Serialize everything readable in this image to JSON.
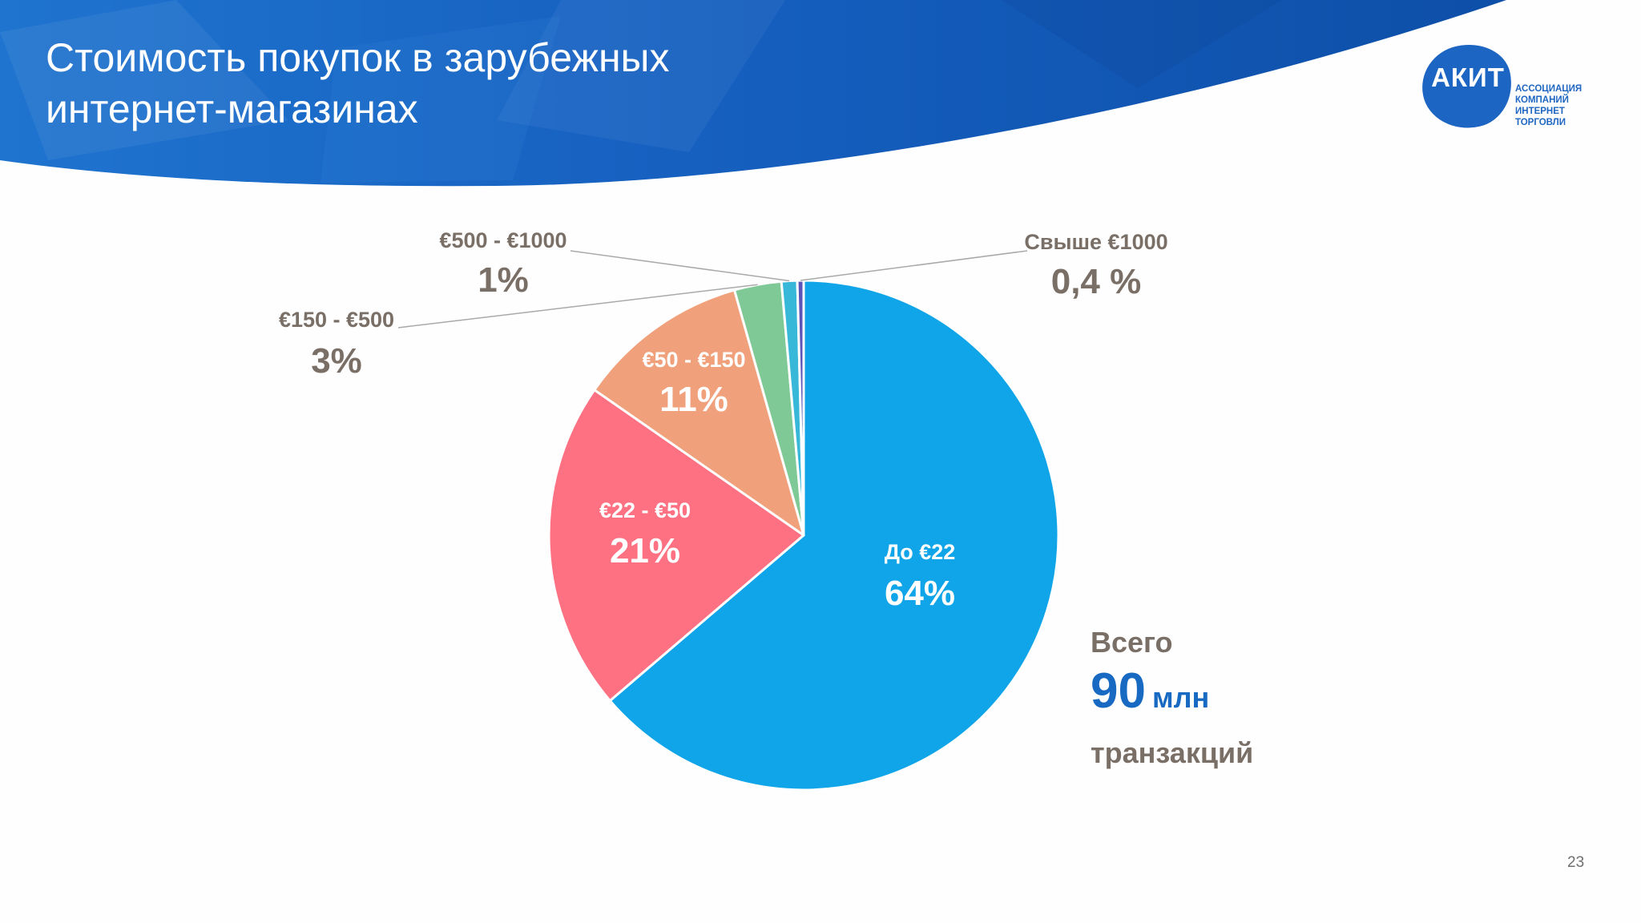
{
  "slide": {
    "title_lines": [
      "Стоимость покупок в зарубежных",
      "интернет-магазинах"
    ],
    "page_number": "23",
    "colors": {
      "header_dark": "#0d4fa8",
      "header_light": "#2d8ae0",
      "accent_blue": "#1769c2",
      "text_gray": "#7a6f66"
    }
  },
  "logo": {
    "abbr": "АКИТ",
    "lines": [
      "АССОЦИАЦИЯ",
      "КОМПАНИЙ",
      "ИНТЕРНЕТ",
      "ТОРГОВЛИ"
    ]
  },
  "summary": {
    "label": "Всего",
    "value": "90",
    "unit": "млн",
    "suffix": "транзакций"
  },
  "chart_data": {
    "type": "pie",
    "title": "",
    "slices": [
      {
        "name": "До €22",
        "value": 64,
        "label": "64%",
        "color": "#10a5e8",
        "label_position": "inside"
      },
      {
        "name": "€22 - €50",
        "value": 21,
        "label": "21%",
        "color": "#fd7183",
        "label_position": "inside"
      },
      {
        "name": "€50 - €150",
        "value": 11,
        "label": "11%",
        "color": "#f0a17b",
        "label_position": "inside"
      },
      {
        "name": "€150 - €500",
        "value": 3,
        "label": "3%",
        "color": "#7fc996",
        "label_position": "outside"
      },
      {
        "name": "€500 - €1000",
        "value": 1,
        "label": "1%",
        "color": "#38b8d8",
        "label_position": "outside"
      },
      {
        "name": "Свыше €1000",
        "value": 0.4,
        "label": "0,4 %",
        "color": "#5a54b8",
        "label_position": "outside"
      }
    ]
  }
}
